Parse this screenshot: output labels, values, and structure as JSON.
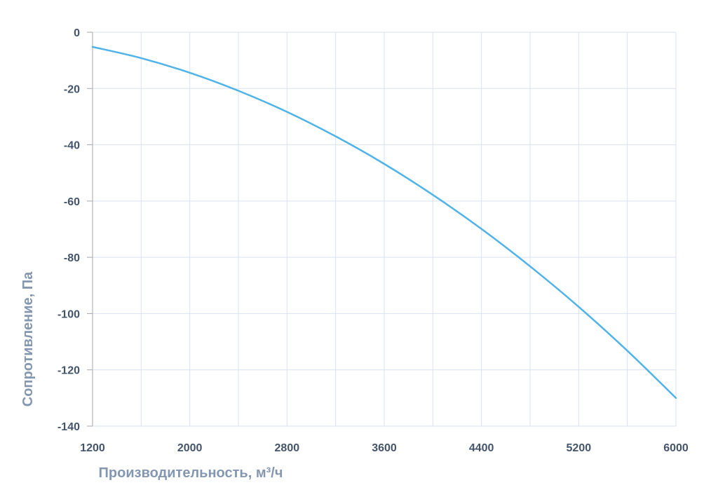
{
  "chart_data": {
    "type": "line",
    "title": "",
    "xlabel": "Производительность, м³/ч",
    "ylabel": "Сопротивление, Па",
    "xlim": [
      1200,
      6000
    ],
    "ylim": [
      -140,
      0
    ],
    "x_ticks": [
      1200,
      2000,
      2800,
      3600,
      4400,
      5200,
      6000
    ],
    "x_minor_gridlines": [
      1600,
      2400,
      3200,
      4000,
      4800,
      5600
    ],
    "y_ticks": [
      0,
      -20,
      -40,
      -60,
      -80,
      -100,
      -120,
      -140
    ],
    "grid": true,
    "legend": "none",
    "series": [
      {
        "x": [
          1200,
          1600,
          2000,
          2400,
          2800,
          3200,
          3600,
          4000,
          4400,
          4800,
          5200,
          5600,
          6000
        ],
        "values": [
          -5.2,
          -9.2,
          -14.4,
          -20.8,
          -28.3,
          -37.0,
          -46.8,
          -57.8,
          -69.9,
          -83.2,
          -97.6,
          -113.2,
          -130.0
        ]
      }
    ],
    "colors": {
      "line": "#4fb3e8",
      "grid": "#d9e2f3",
      "tick_label": "#44546a",
      "axis_title": "#8497b0"
    }
  }
}
